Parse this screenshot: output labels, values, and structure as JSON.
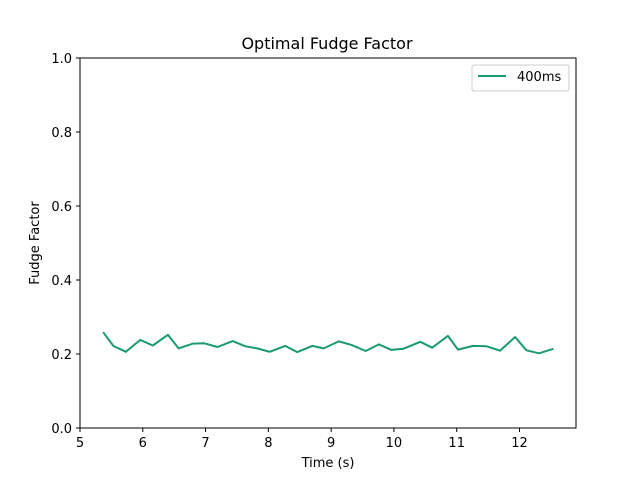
{
  "chart_data": {
    "type": "line",
    "title": "Optimal Fudge Factor",
    "xlabel": "Time (s)",
    "ylabel": "Fudge Factor",
    "xlim": [
      5,
      12.9
    ],
    "ylim": [
      0,
      1
    ],
    "xticks": [
      5,
      6,
      7,
      8,
      9,
      10,
      11,
      12
    ],
    "yticks": [
      "0.0",
      "0.2",
      "0.4",
      "0.6",
      "0.8",
      "1.0"
    ],
    "grid": false,
    "legend_position": "top-right",
    "series": [
      {
        "name": "400ms",
        "color": "#1a9b6f",
        "x": [
          5.37,
          5.53,
          5.73,
          5.96,
          6.16,
          6.4,
          6.57,
          6.8,
          6.98,
          7.19,
          7.43,
          7.63,
          7.82,
          8.02,
          8.27,
          8.46,
          8.7,
          8.88,
          9.12,
          9.32,
          9.55,
          9.76,
          9.96,
          10.15,
          10.42,
          10.61,
          10.86,
          11.02,
          11.26,
          11.47,
          11.69,
          11.93,
          12.11,
          12.31,
          12.54
        ],
        "y": [
          0.259,
          0.222,
          0.206,
          0.238,
          0.223,
          0.252,
          0.215,
          0.228,
          0.229,
          0.219,
          0.235,
          0.221,
          0.215,
          0.206,
          0.222,
          0.205,
          0.222,
          0.215,
          0.234,
          0.225,
          0.208,
          0.226,
          0.211,
          0.214,
          0.233,
          0.217,
          0.249,
          0.212,
          0.222,
          0.221,
          0.209,
          0.246,
          0.21,
          0.202,
          0.214
        ]
      }
    ]
  }
}
